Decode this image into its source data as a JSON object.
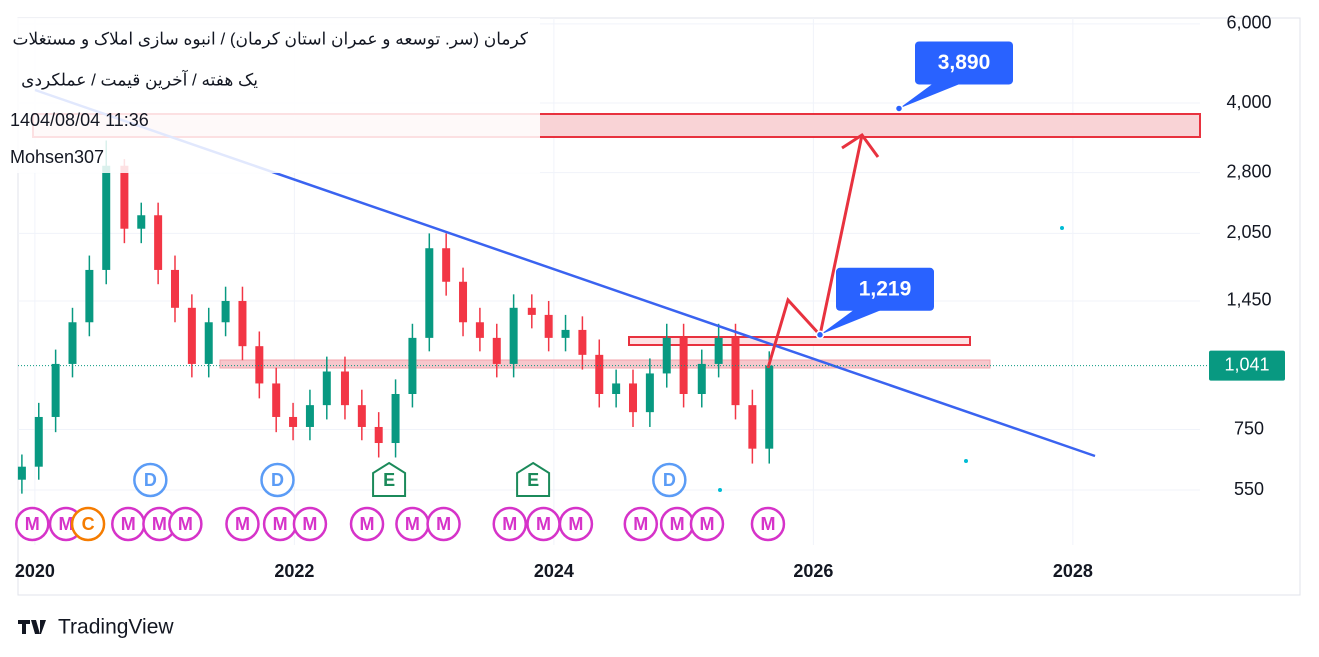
{
  "chart_data": {
    "type": "candlestick",
    "title": "کرمان (سر. توسعه و عمران استان کرمان) / انبوه سازی املاک و مستغلات",
    "subtitle": "یک هفته / آخرین قیمت / عملکردی",
    "timestamp": "1404/08/04 11:36",
    "author": "Mohsen307",
    "brand": "TradingView",
    "log_scale": true,
    "grid": true,
    "up_color": "#089981",
    "down_color": "#f23645",
    "xlim": [
      2019.87,
      2028.98
    ],
    "xticks": [
      2020,
      2022,
      2024,
      2026,
      2028
    ],
    "ylim": [
      415,
      6185
    ],
    "yticks": [
      550,
      750,
      {
        "value": 1450,
        "label": "1,450"
      },
      {
        "value": 2050,
        "label": "2,050"
      },
      {
        "value": 2800,
        "label": "2,800"
      },
      {
        "value": 4000,
        "label": "4,000"
      },
      {
        "value": 6000,
        "label": "6,000"
      }
    ],
    "x": [
      2019.9,
      2020.03,
      2020.16,
      2020.29,
      2020.42,
      2020.55,
      2020.69,
      2020.82,
      2020.95,
      2021.08,
      2021.21,
      2021.34,
      2021.47,
      2021.6,
      2021.73,
      2021.86,
      2021.99,
      2022.12,
      2022.25,
      2022.39,
      2022.52,
      2022.65,
      2022.78,
      2022.91,
      2023.04,
      2023.17,
      2023.3,
      2023.43,
      2023.56,
      2023.69,
      2023.83,
      2023.96,
      2024.09,
      2024.22,
      2024.35,
      2024.48,
      2024.61,
      2024.74,
      2024.87,
      2025.0,
      2025.14,
      2025.27,
      2025.4,
      2025.53,
      2025.66
    ],
    "open": [
      580,
      620,
      800,
      1050,
      1300,
      1700,
      2900,
      2100,
      2250,
      1700,
      1400,
      1050,
      1300,
      1450,
      1150,
      950,
      800,
      760,
      850,
      1010,
      850,
      760,
      700,
      900,
      1200,
      1900,
      1600,
      1300,
      1200,
      1050,
      1400,
      1350,
      1200,
      1250,
      1100,
      900,
      950,
      820,
      1000,
      1200,
      900,
      1050,
      1200,
      850,
      680
    ],
    "high": [
      660,
      860,
      1130,
      1400,
      1830,
      3300,
      3000,
      2400,
      2400,
      1830,
      1500,
      1400,
      1560,
      1560,
      1240,
      1030,
      860,
      920,
      1090,
      1090,
      920,
      820,
      970,
      1290,
      2050,
      2050,
      1720,
      1400,
      1290,
      1500,
      1500,
      1450,
      1350,
      1340,
      1190,
      1020,
      1020,
      1080,
      1290,
      1290,
      1130,
      1290,
      1290,
      920,
      1120
    ],
    "low": [
      540,
      580,
      740,
      980,
      1210,
      1580,
      1950,
      1950,
      1580,
      1300,
      980,
      980,
      1210,
      1070,
      880,
      740,
      710,
      710,
      790,
      790,
      710,
      650,
      650,
      840,
      1120,
      1490,
      1210,
      1120,
      980,
      980,
      1260,
      1120,
      1120,
      1020,
      840,
      840,
      760,
      760,
      930,
      840,
      840,
      980,
      790,
      630,
      630
    ],
    "close": [
      620,
      800,
      1050,
      1300,
      1700,
      2900,
      2100,
      2250,
      1700,
      1400,
      1050,
      1300,
      1450,
      1150,
      950,
      800,
      760,
      850,
      1010,
      850,
      760,
      700,
      900,
      1200,
      1900,
      1600,
      1300,
      1200,
      1050,
      1400,
      1350,
      1200,
      1250,
      1100,
      900,
      950,
      820,
      1000,
      1200,
      900,
      1050,
      1200,
      850,
      680,
      1041
    ],
    "last_price": {
      "value": 1041,
      "label": "1,041"
    },
    "callouts": [
      {
        "value": 3890,
        "label": "3,890"
      },
      {
        "value": 1219,
        "label": "1,219"
      }
    ],
    "events": [
      {
        "label": "D",
        "x": 2020.89
      },
      {
        "label": "D",
        "x": 2021.87
      },
      {
        "label": "E",
        "x": 2022.73
      },
      {
        "label": "E",
        "x": 2023.84
      },
      {
        "label": "D",
        "x": 2024.89
      },
      {
        "label": "M",
        "x": 2019.98
      },
      {
        "label": "M",
        "x": 2020.24
      },
      {
        "label": "C",
        "x": 2020.41
      },
      {
        "label": "M",
        "x": 2020.72
      },
      {
        "label": "M",
        "x": 2020.96
      },
      {
        "label": "M",
        "x": 2021.16
      },
      {
        "label": "M",
        "x": 2021.6
      },
      {
        "label": "M",
        "x": 2021.89
      },
      {
        "label": "M",
        "x": 2022.12
      },
      {
        "label": "M",
        "x": 2022.56
      },
      {
        "label": "M",
        "x": 2022.91
      },
      {
        "label": "M",
        "x": 2023.15
      },
      {
        "label": "M",
        "x": 2023.66
      },
      {
        "label": "M",
        "x": 2023.92
      },
      {
        "label": "M",
        "x": 2024.17
      },
      {
        "label": "M",
        "x": 2024.67
      },
      {
        "label": "M",
        "x": 2024.95
      },
      {
        "label": "M",
        "x": 2025.18
      },
      {
        "label": "M",
        "x": 2025.65
      }
    ]
  }
}
